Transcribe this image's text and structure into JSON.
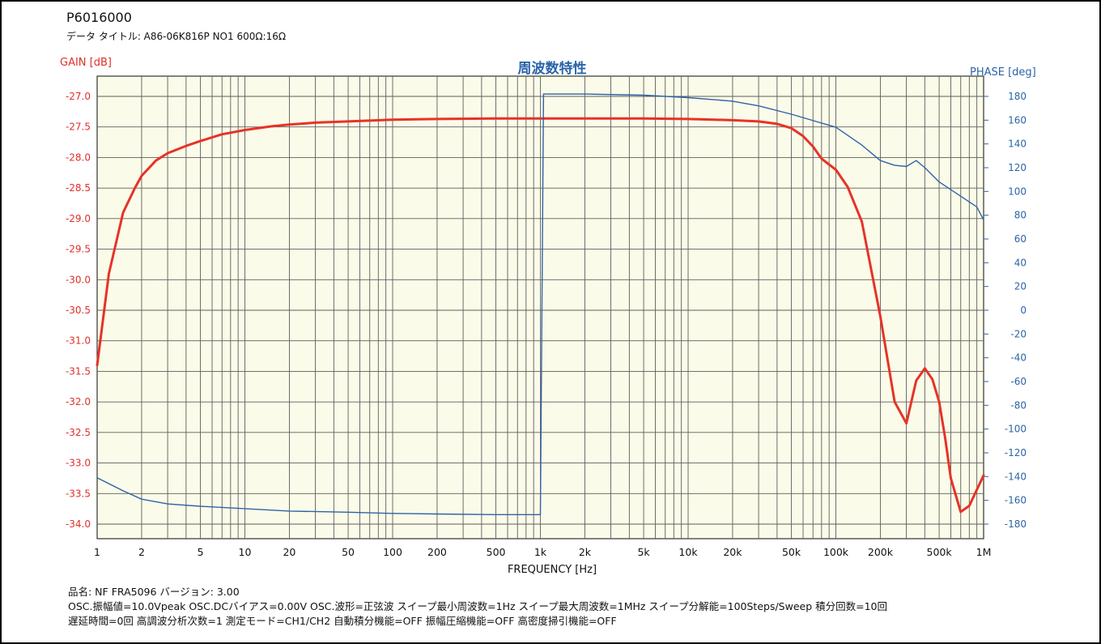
{
  "header": {
    "doc_id": "P6016000",
    "data_title": "データ タイトル: A86-06K816P  NO1  600Ω:16Ω"
  },
  "colors": {
    "gain": "#e63327",
    "phase": "#2f63a7",
    "grid": "#5e5e5e",
    "plot_bg": "#fbfbe9"
  },
  "chart_data": {
    "type": "line",
    "title": "周波数特性",
    "xlabel": "FREQUENCY [Hz]",
    "ylabel_left": "GAIN [dB]",
    "ylabel_right": "PHASE [deg]",
    "x_scale": "log",
    "xlim": [
      1,
      1000000
    ],
    "ylim_left": [
      -34.0,
      -27.0
    ],
    "ylim_right": [
      -180,
      180
    ],
    "x_ticks": [
      1,
      2,
      5,
      10,
      20,
      50,
      100,
      200,
      500,
      1000,
      2000,
      5000,
      10000,
      20000,
      50000,
      100000,
      200000,
      500000,
      1000000
    ],
    "x_tick_labels": [
      "1",
      "2",
      "5",
      "10",
      "20",
      "50",
      "100",
      "200",
      "500",
      "1k",
      "2k",
      "5k",
      "10k",
      "20k",
      "50k",
      "100k",
      "200k",
      "500k",
      "1M"
    ],
    "y_left_ticks": [
      "-27.0",
      "-27.5",
      "-28.0",
      "-28.5",
      "-29.0",
      "-29.5",
      "-30.0",
      "-30.5",
      "-31.0",
      "-31.5",
      "-32.0",
      "-32.5",
      "-33.0",
      "-33.5",
      "-34.0"
    ],
    "y_right_ticks": [
      "180",
      "160",
      "140",
      "120",
      "100",
      "80",
      "60",
      "40",
      "20",
      "0",
      "-20",
      "-40",
      "-60",
      "-80",
      "-100",
      "-120",
      "-140",
      "-160",
      "-180"
    ],
    "grid": true,
    "series": [
      {
        "name": "GAIN [dB]",
        "axis": "left",
        "x": [
          1,
          1.2,
          1.5,
          1.8,
          2,
          2.5,
          3,
          4,
          5,
          7,
          10,
          15,
          20,
          30,
          50,
          100,
          200,
          500,
          1000,
          2000,
          5000,
          10000,
          15000,
          20000,
          30000,
          40000,
          50000,
          60000,
          70000,
          80000,
          100000,
          120000,
          150000,
          200000,
          250000,
          300000,
          350000,
          400000,
          450000,
          500000,
          550000,
          600000,
          700000,
          800000,
          1000000
        ],
        "y": [
          -31.4,
          -29.9,
          -28.9,
          -28.5,
          -28.3,
          -28.05,
          -27.93,
          -27.81,
          -27.73,
          -27.62,
          -27.55,
          -27.49,
          -27.46,
          -27.43,
          -27.41,
          -27.38,
          -27.37,
          -27.36,
          -27.36,
          -27.36,
          -27.36,
          -27.37,
          -27.38,
          -27.39,
          -27.41,
          -27.45,
          -27.52,
          -27.65,
          -27.82,
          -28.02,
          -28.2,
          -28.48,
          -29.05,
          -30.6,
          -32.0,
          -32.35,
          -31.65,
          -31.45,
          -31.63,
          -32.0,
          -32.6,
          -33.25,
          -33.8,
          -33.7,
          -33.2
        ]
      },
      {
        "name": "PHASE [deg]",
        "axis": "right",
        "x": [
          1,
          1.5,
          2,
          3,
          5,
          10,
          20,
          50,
          100,
          200,
          500,
          1000,
          1050,
          2000,
          5000,
          10000,
          20000,
          30000,
          50000,
          100000,
          150000,
          200000,
          250000,
          300000,
          350000,
          400000,
          500000,
          700000,
          900000,
          1000000
        ],
        "y": [
          -141,
          -152,
          -159,
          -163,
          -165,
          -167,
          -169,
          -170,
          -171,
          -171.5,
          -172,
          -172,
          182,
          182,
          181,
          179,
          176,
          172,
          165,
          154,
          139,
          126,
          122,
          121,
          126,
          120,
          108,
          96,
          87,
          76
        ]
      }
    ]
  },
  "footer": {
    "line1": "品名: NF FRA5096        バージョン: 3.00",
    "line2": "OSC.振幅値=10.0Vpeak  OSC.DCバイアス=0.00V  OSC.波形=正弦波  スイープ最小周波数=1Hz  スイープ最大周波数=1MHz  スイープ分解能=100Steps/Sweep  積分回数=10回",
    "line3": "遅延時間=0回  高調波分析次数=1  測定モード=CH1/CH2  自動積分機能=OFF  振幅圧縮機能=OFF  高密度掃引機能=OFF"
  }
}
